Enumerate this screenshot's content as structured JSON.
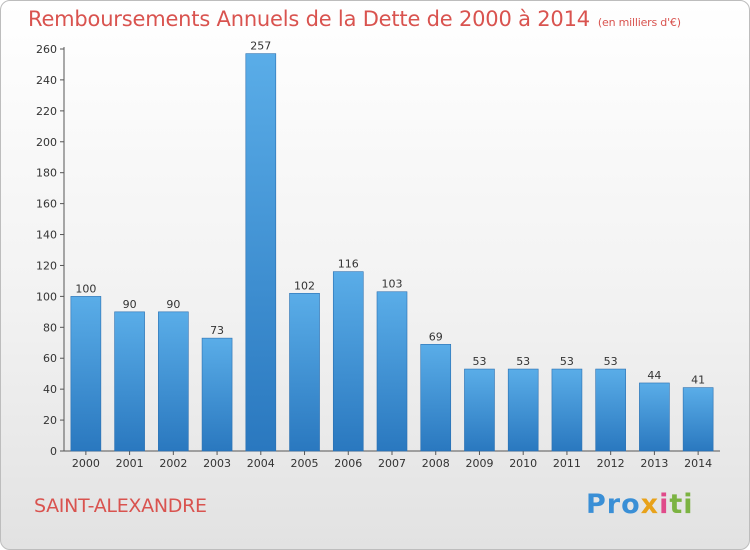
{
  "header": {
    "title": "Remboursements Annuels de la Dette de 2000 à 2014",
    "unit": "(en milliers d'€)"
  },
  "footer": {
    "city": "SAINT-ALEXANDRE",
    "logo": {
      "p1": "Pro",
      "p2": "x",
      "p3": "i",
      "p4": "ti"
    }
  },
  "colors": {
    "title": "#d9534f",
    "bar_light": "#5aade8",
    "bar_dark": "#2a78bf"
  },
  "chart_data": {
    "type": "bar",
    "title": "Remboursements Annuels de la Dette de 2000 à 2014",
    "subtitle": "(en milliers d'€)",
    "xlabel": "",
    "ylabel": "",
    "categories": [
      "2000",
      "2001",
      "2002",
      "2003",
      "2004",
      "2005",
      "2006",
      "2007",
      "2008",
      "2009",
      "2010",
      "2011",
      "2012",
      "2013",
      "2014"
    ],
    "values": [
      100,
      90,
      90,
      73,
      257,
      102,
      116,
      103,
      69,
      53,
      53,
      53,
      53,
      44,
      41
    ],
    "ylim": [
      0,
      260
    ],
    "yticks": [
      0,
      20,
      40,
      60,
      80,
      100,
      120,
      140,
      160,
      180,
      200,
      220,
      240,
      260
    ],
    "grid": false,
    "legend": "none"
  }
}
